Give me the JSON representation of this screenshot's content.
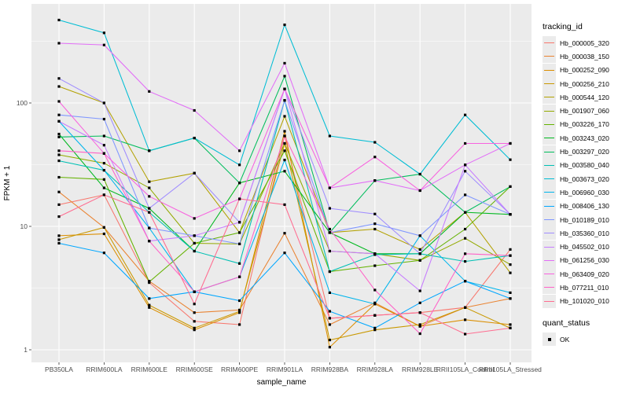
{
  "chart_data": {
    "type": "line",
    "title": "",
    "xlabel": "sample_name",
    "ylabel": "FPKM + 1",
    "y_scale": "log10",
    "y_ticks": [
      1,
      10,
      100
    ],
    "y_minor_ticks": [
      3.162,
      31.62,
      316.2
    ],
    "ylim": [
      0.79,
      630
    ],
    "grid": true,
    "panel_bg": "#ebebeb",
    "grid_color": "#ffffff",
    "tick_text_color": "#4d4d4d",
    "marker": {
      "shape": "square",
      "color": "#000000"
    },
    "legend": {
      "position": "right",
      "title": "tracking_id",
      "quant_title": "quant_status",
      "quant_label": "OK"
    },
    "x_categories": [
      "PB350LA",
      "RRIM600LA",
      "RRIM600LE",
      "RRIM600SE",
      "RRIM600PE",
      "RRIM901LA",
      "RRIM928BA",
      "RRIM928LA",
      "RRIM928LE",
      "RRII105LA_Control",
      "RRII105LA_Stressed"
    ],
    "series": [
      {
        "name": "Hb_000005_320",
        "color": "#F8766D",
        "values": [
          15,
          18,
          3.5,
          1.7,
          1.6,
          54,
          1.8,
          1.9,
          2.0,
          2.2,
          6.5
        ]
      },
      {
        "name": "Hb_000038_150",
        "color": "#EA8331",
        "values": [
          19,
          9.8,
          3.6,
          2.0,
          2.1,
          8.8,
          1.6,
          2.4,
          1.55,
          2.2,
          2.6
        ]
      },
      {
        "name": "Hb_000252_090",
        "color": "#DB8E00",
        "values": [
          8.4,
          8.7,
          2.2,
          1.45,
          2.0,
          59,
          1.05,
          2.35,
          1.55,
          1.75,
          1.6
        ]
      },
      {
        "name": "Hb_000256_210",
        "color": "#C99800",
        "values": [
          7.8,
          9.8,
          2.3,
          1.5,
          2.05,
          47,
          1.2,
          1.45,
          1.6,
          2.2,
          1.5
        ]
      },
      {
        "name": "Hb_000544_120",
        "color": "#B2A100",
        "values": [
          136,
          100,
          23,
          27,
          8.9,
          78,
          8.9,
          9.5,
          6.5,
          13,
          4.2
        ]
      },
      {
        "name": "Hb_001907_060",
        "color": "#93AA00",
        "values": [
          38,
          32.5,
          20.5,
          7.3,
          7.2,
          47,
          6.3,
          6.0,
          5.3,
          8.0,
          4.9
        ]
      },
      {
        "name": "Hb_003226_170",
        "color": "#64B200",
        "values": [
          25,
          24,
          3.55,
          7.3,
          8.9,
          41,
          4.3,
          4.8,
          5.3,
          9.5,
          21
        ]
      },
      {
        "name": "Hb_003243_020",
        "color": "#00B81F",
        "values": [
          56,
          20.5,
          14,
          6.3,
          22.5,
          28,
          8.9,
          6.0,
          6.0,
          13,
          12.5
        ]
      },
      {
        "name": "Hb_003297_020",
        "color": "#00BD5C",
        "values": [
          53,
          54,
          41,
          52,
          22.5,
          165,
          8.9,
          23.5,
          26.5,
          13,
          21
        ]
      },
      {
        "name": "Hb_003580_040",
        "color": "#00C0B4",
        "values": [
          34,
          28.5,
          13,
          6.3,
          5.0,
          105,
          4.3,
          5.9,
          6.0,
          5.2,
          5.8
        ]
      },
      {
        "name": "Hb_003673_020",
        "color": "#00BDD4",
        "values": [
          470,
          370,
          41,
          52,
          31.5,
          430,
          54,
          48,
          26.5,
          80,
          34.7
        ]
      },
      {
        "name": "Hb_006960_030",
        "color": "#00B5EC",
        "values": [
          71,
          28.5,
          9.7,
          2.95,
          3.9,
          34.5,
          2.9,
          2.35,
          8.4,
          3.6,
          2.9
        ]
      },
      {
        "name": "Hb_008406_130",
        "color": "#00A7FF",
        "values": [
          7.3,
          6.1,
          2.6,
          2.95,
          2.5,
          6.1,
          2.05,
          1.5,
          2.4,
          3.6,
          2.6
        ]
      },
      {
        "name": "Hb_010189_010",
        "color": "#7F96FF",
        "values": [
          80,
          74,
          9.7,
          8.4,
          7.2,
          105,
          8.9,
          10.5,
          8.4,
          18,
          12.5
        ]
      },
      {
        "name": "Hb_035360_010",
        "color": "#9F8CFF",
        "values": [
          158,
          100,
          14,
          27,
          10.8,
          130,
          14,
          12.6,
          6.0,
          28,
          12.5
        ]
      },
      {
        "name": "Hb_045502_010",
        "color": "#C77CFF",
        "values": [
          71,
          45.5,
          7.6,
          8.4,
          10.8,
          130,
          6.3,
          6.0,
          3.0,
          31.5,
          12.5
        ]
      },
      {
        "name": "Hb_061256_030",
        "color": "#E26EF7",
        "values": [
          305,
          295,
          124,
          87,
          41,
          210,
          20.5,
          23.5,
          19.5,
          31.5,
          47
        ]
      },
      {
        "name": "Hb_063409_020",
        "color": "#F863DF",
        "values": [
          103,
          39,
          17.5,
          11.6,
          16.7,
          130,
          20.5,
          36.5,
          19.5,
          47,
          47
        ]
      },
      {
        "name": "Hb_077211_010",
        "color": "#FF61C7",
        "values": [
          41,
          39,
          7.6,
          2.95,
          3.9,
          54,
          9.5,
          3.05,
          1.35,
          6.0,
          5.8
        ]
      },
      {
        "name": "Hb_101020_010",
        "color": "#FF6C90",
        "values": [
          12,
          18,
          13,
          2.35,
          16.7,
          15,
          1.8,
          1.9,
          2.0,
          1.34,
          1.5
        ]
      }
    ]
  }
}
